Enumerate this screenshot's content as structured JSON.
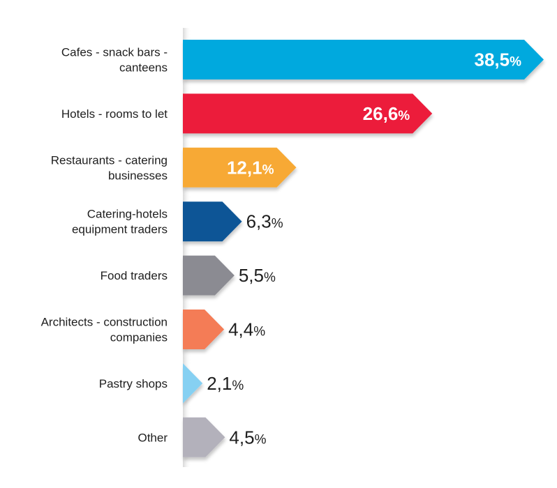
{
  "chart_data": {
    "type": "bar",
    "orientation": "horizontal",
    "categories": [
      [
        "Cafes - snack bars -",
        "canteens"
      ],
      [
        "Hotels - rooms to let"
      ],
      [
        "Restaurants - catering",
        "businesses"
      ],
      [
        "Catering-hotels",
        "equipment traders"
      ],
      [
        "Food traders"
      ],
      [
        "Architects - construction",
        "companies"
      ],
      [
        "Pastry shops"
      ],
      [
        "Other"
      ]
    ],
    "values": [
      38.5,
      26.6,
      12.1,
      6.3,
      5.5,
      4.4,
      2.1,
      4.5
    ],
    "value_labels": [
      "38,5",
      "26,6",
      "12,1",
      "6,3",
      "5,5",
      "4,4",
      "2,1",
      "4,5"
    ],
    "unit": "%",
    "colors": [
      "#00a9de",
      "#ec1b3b",
      "#f7a934",
      "#0b5596",
      "#8b8b92",
      "#f47c56",
      "#86d0f2",
      "#b3b1bb"
    ],
    "label_inside": [
      true,
      true,
      true,
      false,
      false,
      false,
      false,
      false
    ],
    "inside_label_color": "#ffffff",
    "outside_label_color": "#1e1e1e",
    "axis_line_color": "#d9d9d9",
    "title": "",
    "xlabel": "",
    "ylabel": "",
    "xlim": [
      0,
      38.5
    ],
    "grid": false,
    "legend": "none"
  }
}
